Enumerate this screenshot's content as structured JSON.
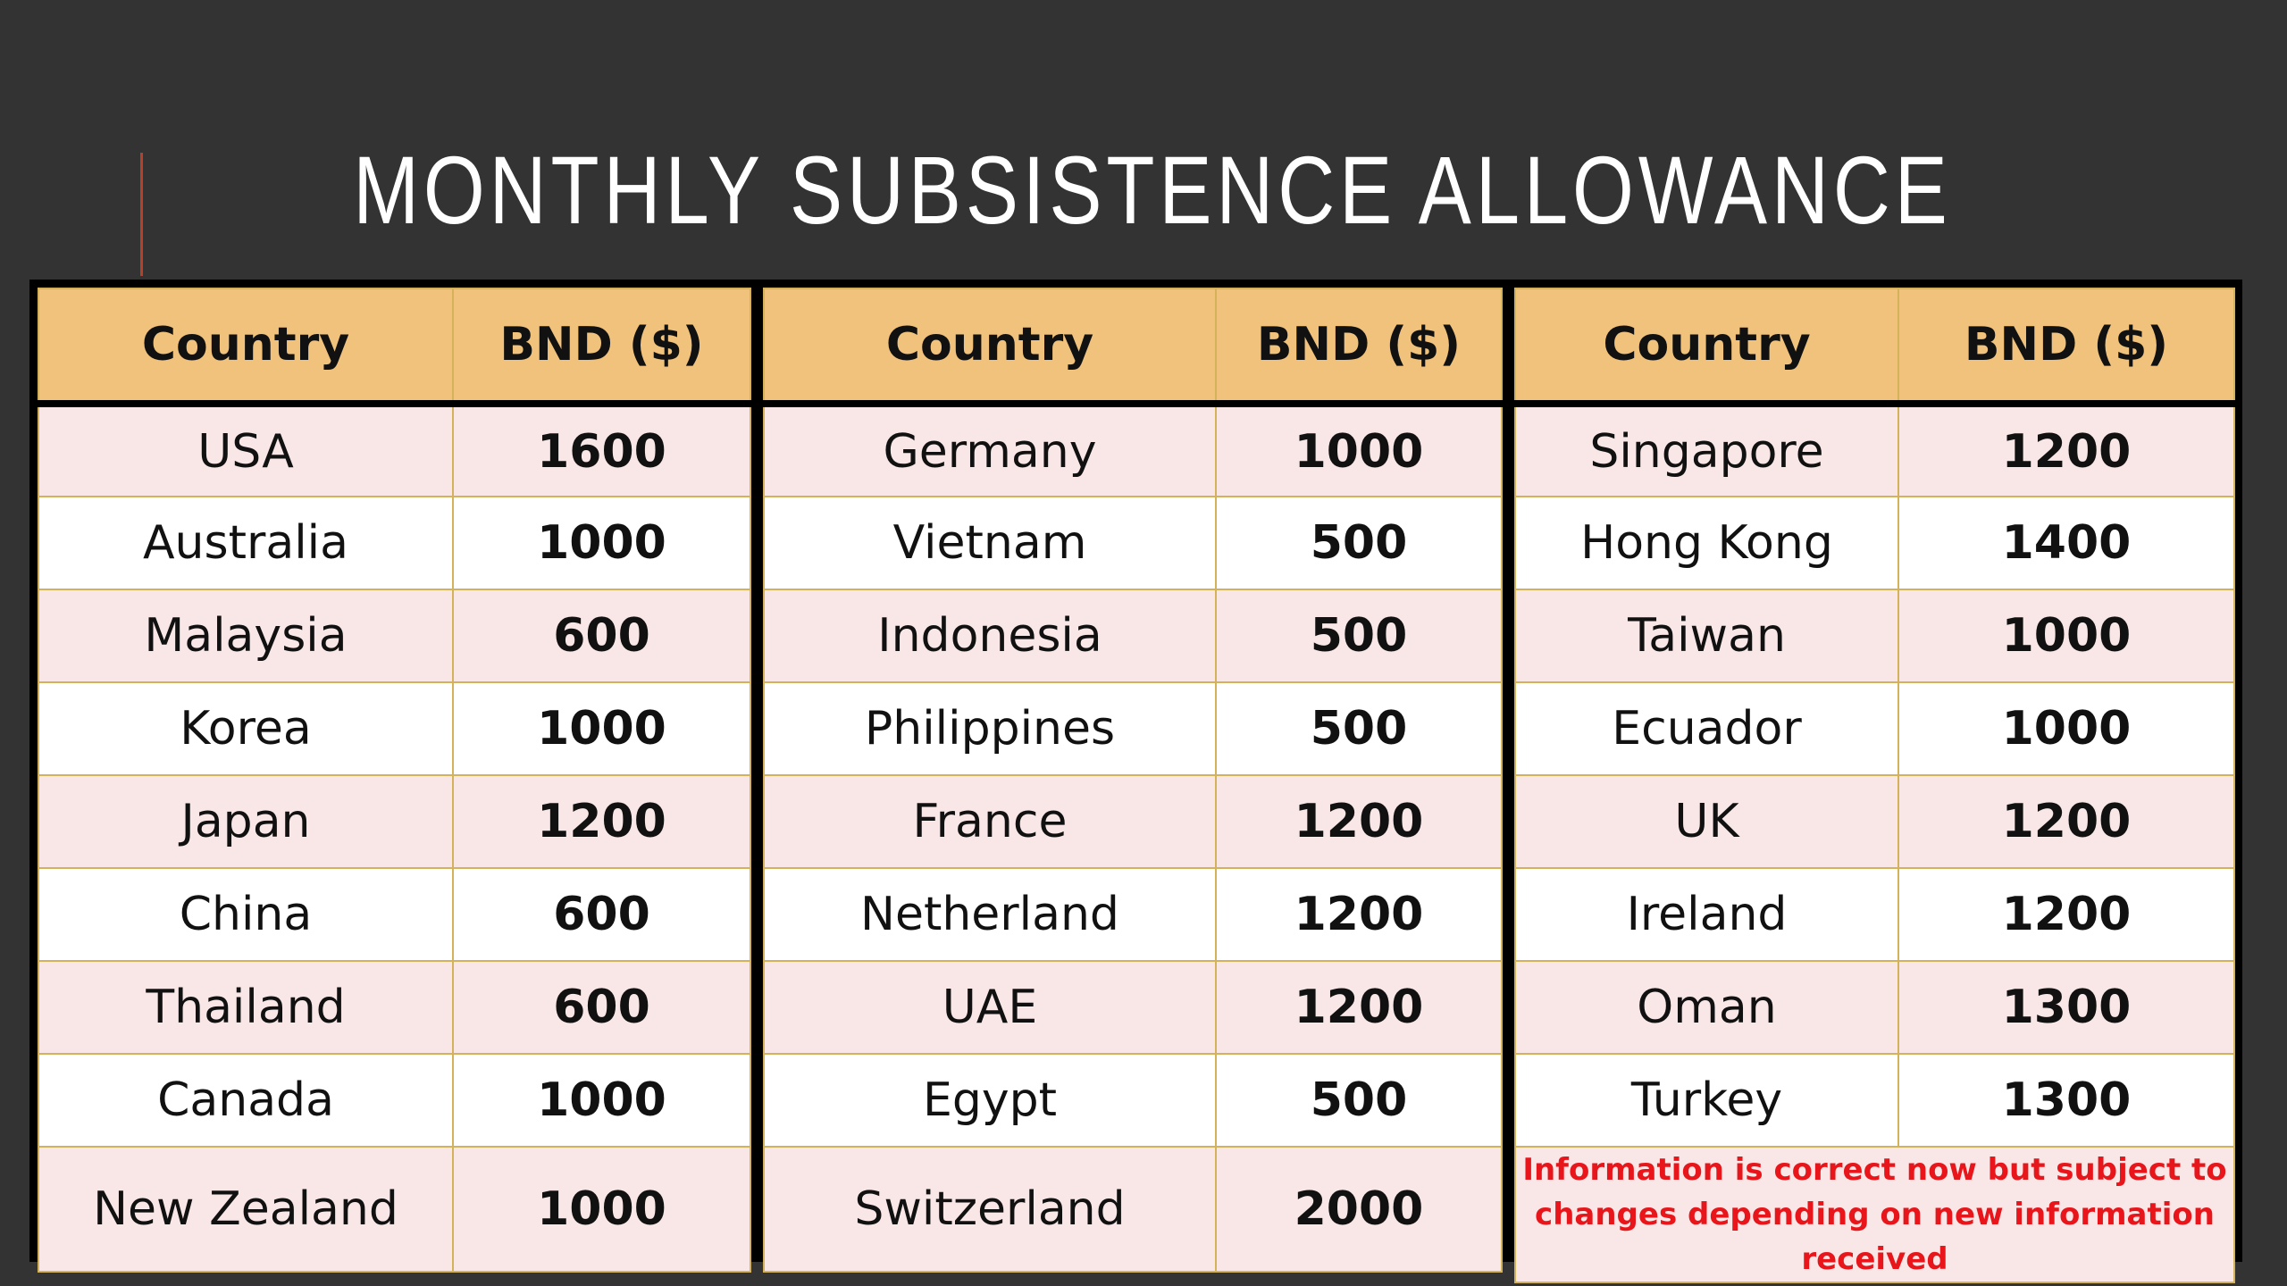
{
  "title": "MONTHLY SUBSISTENCE ALLOWANCE",
  "tables": [
    {
      "header": [
        "Country",
        "BND ($)"
      ],
      "rows": [
        [
          "USA",
          1600
        ],
        [
          "Australia",
          1000
        ],
        [
          "Malaysia",
          600
        ],
        [
          "Korea",
          1000
        ],
        [
          "Japan",
          1200
        ],
        [
          "China",
          600
        ],
        [
          "Thailand",
          600
        ],
        [
          "Canada",
          1000
        ],
        [
          "New Zealand",
          1000
        ]
      ]
    },
    {
      "header": [
        "Country",
        "BND ($)"
      ],
      "rows": [
        [
          "Germany",
          1000
        ],
        [
          "Vietnam",
          500
        ],
        [
          "Indonesia",
          500
        ],
        [
          "Philippines",
          500
        ],
        [
          "France",
          1200
        ],
        [
          "Netherland",
          1200
        ],
        [
          "UAE",
          1200
        ],
        [
          "Egypt",
          500
        ],
        [
          "Switzerland",
          2000
        ]
      ]
    },
    {
      "header": [
        "Country",
        "BND ($)"
      ],
      "rows": [
        [
          "Singapore",
          1200
        ],
        [
          "Hong Kong",
          1400
        ],
        [
          "Taiwan",
          1000
        ],
        [
          "Ecuador",
          1000
        ],
        [
          "UK",
          1200
        ],
        [
          "Ireland",
          1200
        ],
        [
          "Oman",
          1300
        ],
        [
          "Turkey",
          1300
        ]
      ],
      "note": "Information is correct now but subject to changes depending on new information received"
    }
  ]
}
